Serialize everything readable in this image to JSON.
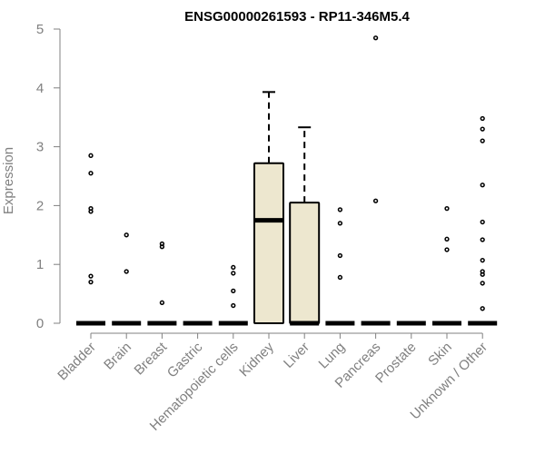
{
  "chart_data": {
    "type": "boxplot",
    "title": "ENSG00000261593 - RP11-346M5.4",
    "ylabel": "Expression",
    "xlabel": "",
    "ylim": [
      0,
      5
    ],
    "yticks": [
      0,
      1,
      2,
      3,
      4,
      5
    ],
    "box_fill": "#ede7cf",
    "categories": [
      "Bladder",
      "Brain",
      "Breast",
      "Gastric",
      "Hematopoietic cells",
      "Kidney",
      "Liver",
      "Lung",
      "Pancreas",
      "Prostate",
      "Skin",
      "Unknown / Other"
    ],
    "boxes": [
      {
        "name": "Bladder",
        "q1": 0,
        "median": 0,
        "q3": 0,
        "whisker_low": 0,
        "whisker_high": 0,
        "outliers": [
          0.7,
          0.8,
          1.9,
          1.95,
          2.55,
          2.85
        ]
      },
      {
        "name": "Brain",
        "q1": 0,
        "median": 0,
        "q3": 0,
        "whisker_low": 0,
        "whisker_high": 0,
        "outliers": [
          0.88,
          1.5
        ]
      },
      {
        "name": "Breast",
        "q1": 0,
        "median": 0,
        "q3": 0,
        "whisker_low": 0,
        "whisker_high": 0,
        "outliers": [
          0.35,
          1.3,
          1.35
        ]
      },
      {
        "name": "Gastric",
        "q1": 0,
        "median": 0,
        "q3": 0,
        "whisker_low": 0,
        "whisker_high": 0,
        "outliers": []
      },
      {
        "name": "Hematopoietic cells",
        "q1": 0,
        "median": 0,
        "q3": 0,
        "whisker_low": 0,
        "whisker_high": 0,
        "outliers": [
          0.3,
          0.55,
          0.85,
          0.95
        ]
      },
      {
        "name": "Kidney",
        "q1": 0,
        "median": 1.75,
        "q3": 2.72,
        "whisker_low": 0,
        "whisker_high": 3.93,
        "outliers": []
      },
      {
        "name": "Liver",
        "q1": 0,
        "median": 0,
        "q3": 2.05,
        "whisker_low": 0,
        "whisker_high": 3.33,
        "outliers": []
      },
      {
        "name": "Lung",
        "q1": 0,
        "median": 0,
        "q3": 0,
        "whisker_low": 0,
        "whisker_high": 0,
        "outliers": [
          0.78,
          1.15,
          1.7,
          1.93
        ]
      },
      {
        "name": "Pancreas",
        "q1": 0,
        "median": 0,
        "q3": 0,
        "whisker_low": 0,
        "whisker_high": 0,
        "outliers": [
          2.08,
          4.85
        ]
      },
      {
        "name": "Prostate",
        "q1": 0,
        "median": 0,
        "q3": 0,
        "whisker_low": 0,
        "whisker_high": 0,
        "outliers": []
      },
      {
        "name": "Skin",
        "q1": 0,
        "median": 0,
        "q3": 0,
        "whisker_low": 0,
        "whisker_high": 0,
        "outliers": [
          1.25,
          1.43,
          1.95
        ]
      },
      {
        "name": "Unknown / Other",
        "q1": 0,
        "median": 0,
        "q3": 0,
        "whisker_low": 0,
        "whisker_high": 0,
        "outliers": [
          0.25,
          0.68,
          0.83,
          0.88,
          1.07,
          1.42,
          1.72,
          2.35,
          3.1,
          3.3,
          3.48
        ]
      }
    ]
  }
}
